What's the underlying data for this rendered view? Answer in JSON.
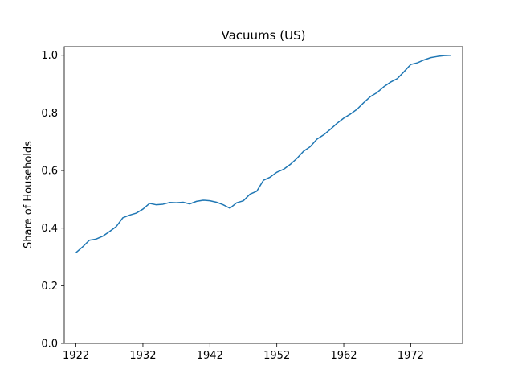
{
  "chart_data": {
    "type": "line",
    "title": "Vacuums (US)",
    "xlabel": "",
    "ylabel": "Share of Households",
    "xlim": [
      1920.25,
      1979.75
    ],
    "ylim": [
      0.0,
      1.03
    ],
    "x_ticks": [
      1922,
      1932,
      1942,
      1952,
      1962,
      1972
    ],
    "y_ticks": [
      "0.0",
      "0.2",
      "0.4",
      "0.6",
      "0.8",
      "1.0"
    ],
    "grid": false,
    "series": [
      {
        "color": "#1f77b4",
        "x": [
          1922,
          1923,
          1924,
          1925,
          1926,
          1927,
          1928,
          1929,
          1930,
          1931,
          1932,
          1933,
          1934,
          1935,
          1936,
          1937,
          1938,
          1939,
          1940,
          1941,
          1942,
          1943,
          1944,
          1945,
          1946,
          1947,
          1948,
          1949,
          1950,
          1951,
          1952,
          1953,
          1954,
          1955,
          1956,
          1957,
          1958,
          1959,
          1960,
          1961,
          1962,
          1963,
          1964,
          1965,
          1966,
          1967,
          1968,
          1969,
          1970,
          1971,
          1972,
          1973,
          1974,
          1975,
          1976,
          1977,
          1978
        ],
        "y": [
          0.315,
          0.335,
          0.358,
          0.362,
          0.372,
          0.388,
          0.405,
          0.436,
          0.445,
          0.452,
          0.466,
          0.486,
          0.481,
          0.483,
          0.489,
          0.488,
          0.49,
          0.484,
          0.493,
          0.497,
          0.495,
          0.49,
          0.481,
          0.469,
          0.488,
          0.495,
          0.518,
          0.528,
          0.566,
          0.577,
          0.594,
          0.604,
          0.621,
          0.642,
          0.667,
          0.683,
          0.709,
          0.724,
          0.743,
          0.764,
          0.782,
          0.796,
          0.813,
          0.836,
          0.857,
          0.871,
          0.891,
          0.907,
          0.919,
          0.943,
          0.968,
          0.974,
          0.984,
          0.992,
          0.996,
          0.999,
          1.0
        ]
      }
    ]
  }
}
